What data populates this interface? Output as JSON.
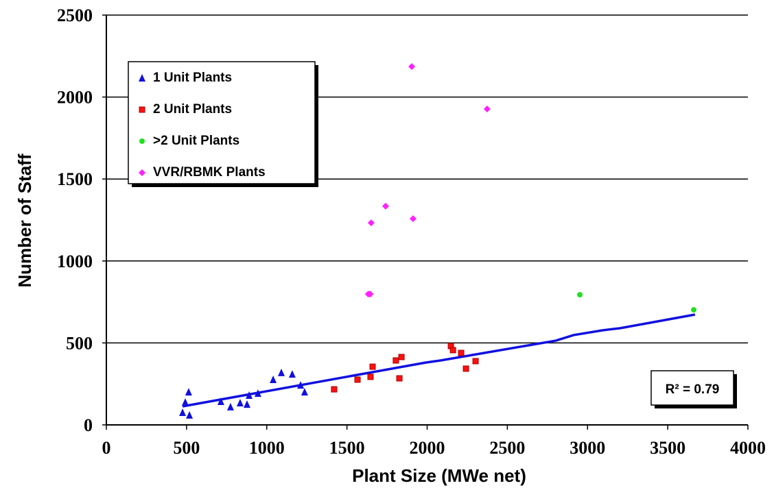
{
  "chart_data": {
    "type": "scatter",
    "x_label": "Plant Size (MWe net)",
    "y_label": "Number of Staff",
    "xlim": [
      0,
      4000
    ],
    "xticks": [
      0,
      500,
      1000,
      1500,
      2000,
      2500,
      3000,
      3500,
      4000
    ],
    "ylim": [
      0,
      2500
    ],
    "yticks": [
      0,
      500,
      1000,
      1500,
      2000,
      2500
    ],
    "grid": true,
    "legend": "upper left",
    "series": [
      {
        "name": "1 Unit Plants",
        "color": "#1010e0",
        "marker": "triangle",
        "x": [
          475,
          492,
          513,
          518,
          714,
          774,
          834,
          877,
          890,
          945,
          1040,
          1091,
          1159,
          1211,
          1236
        ],
        "values": [
          75,
          138,
          200,
          59,
          142,
          109,
          134,
          125,
          180,
          192,
          276,
          318,
          309,
          242,
          200
        ]
      },
      {
        "name": "2 Unit Plants",
        "color": "#ff1010",
        "marker": "square",
        "x": [
          1420,
          1566,
          1647,
          1660,
          1805,
          1827,
          1840,
          2148,
          2161,
          2212,
          2242,
          2302
        ],
        "values": [
          217,
          276,
          293,
          355,
          393,
          284,
          414,
          481,
          456,
          439,
          343,
          389
        ]
      },
      {
        "name": ">2 Unit Plants",
        "color": "#20e020",
        "marker": "circle",
        "x": [
          2952,
          3662
        ],
        "values": [
          794,
          702
        ]
      },
      {
        "name": "VVR/RBMK Plants",
        "color": "#ff20ff",
        "marker": "diamond",
        "x": [
          1904,
          2374,
          1741,
          1651,
          1912,
          1633,
          1645
        ],
        "values": [
          2186,
          1927,
          1334,
          1233,
          1258,
          798,
          798
        ]
      }
    ],
    "trendline": {
      "color": "#1010e0",
      "x": [
        475,
        1989,
        2083,
        2802,
        2913,
        3093,
        3204,
        3670
      ],
      "values": [
        113,
        380,
        393,
        514,
        548,
        577,
        590,
        673
      ]
    },
    "annotation": "R² = 0.79"
  }
}
